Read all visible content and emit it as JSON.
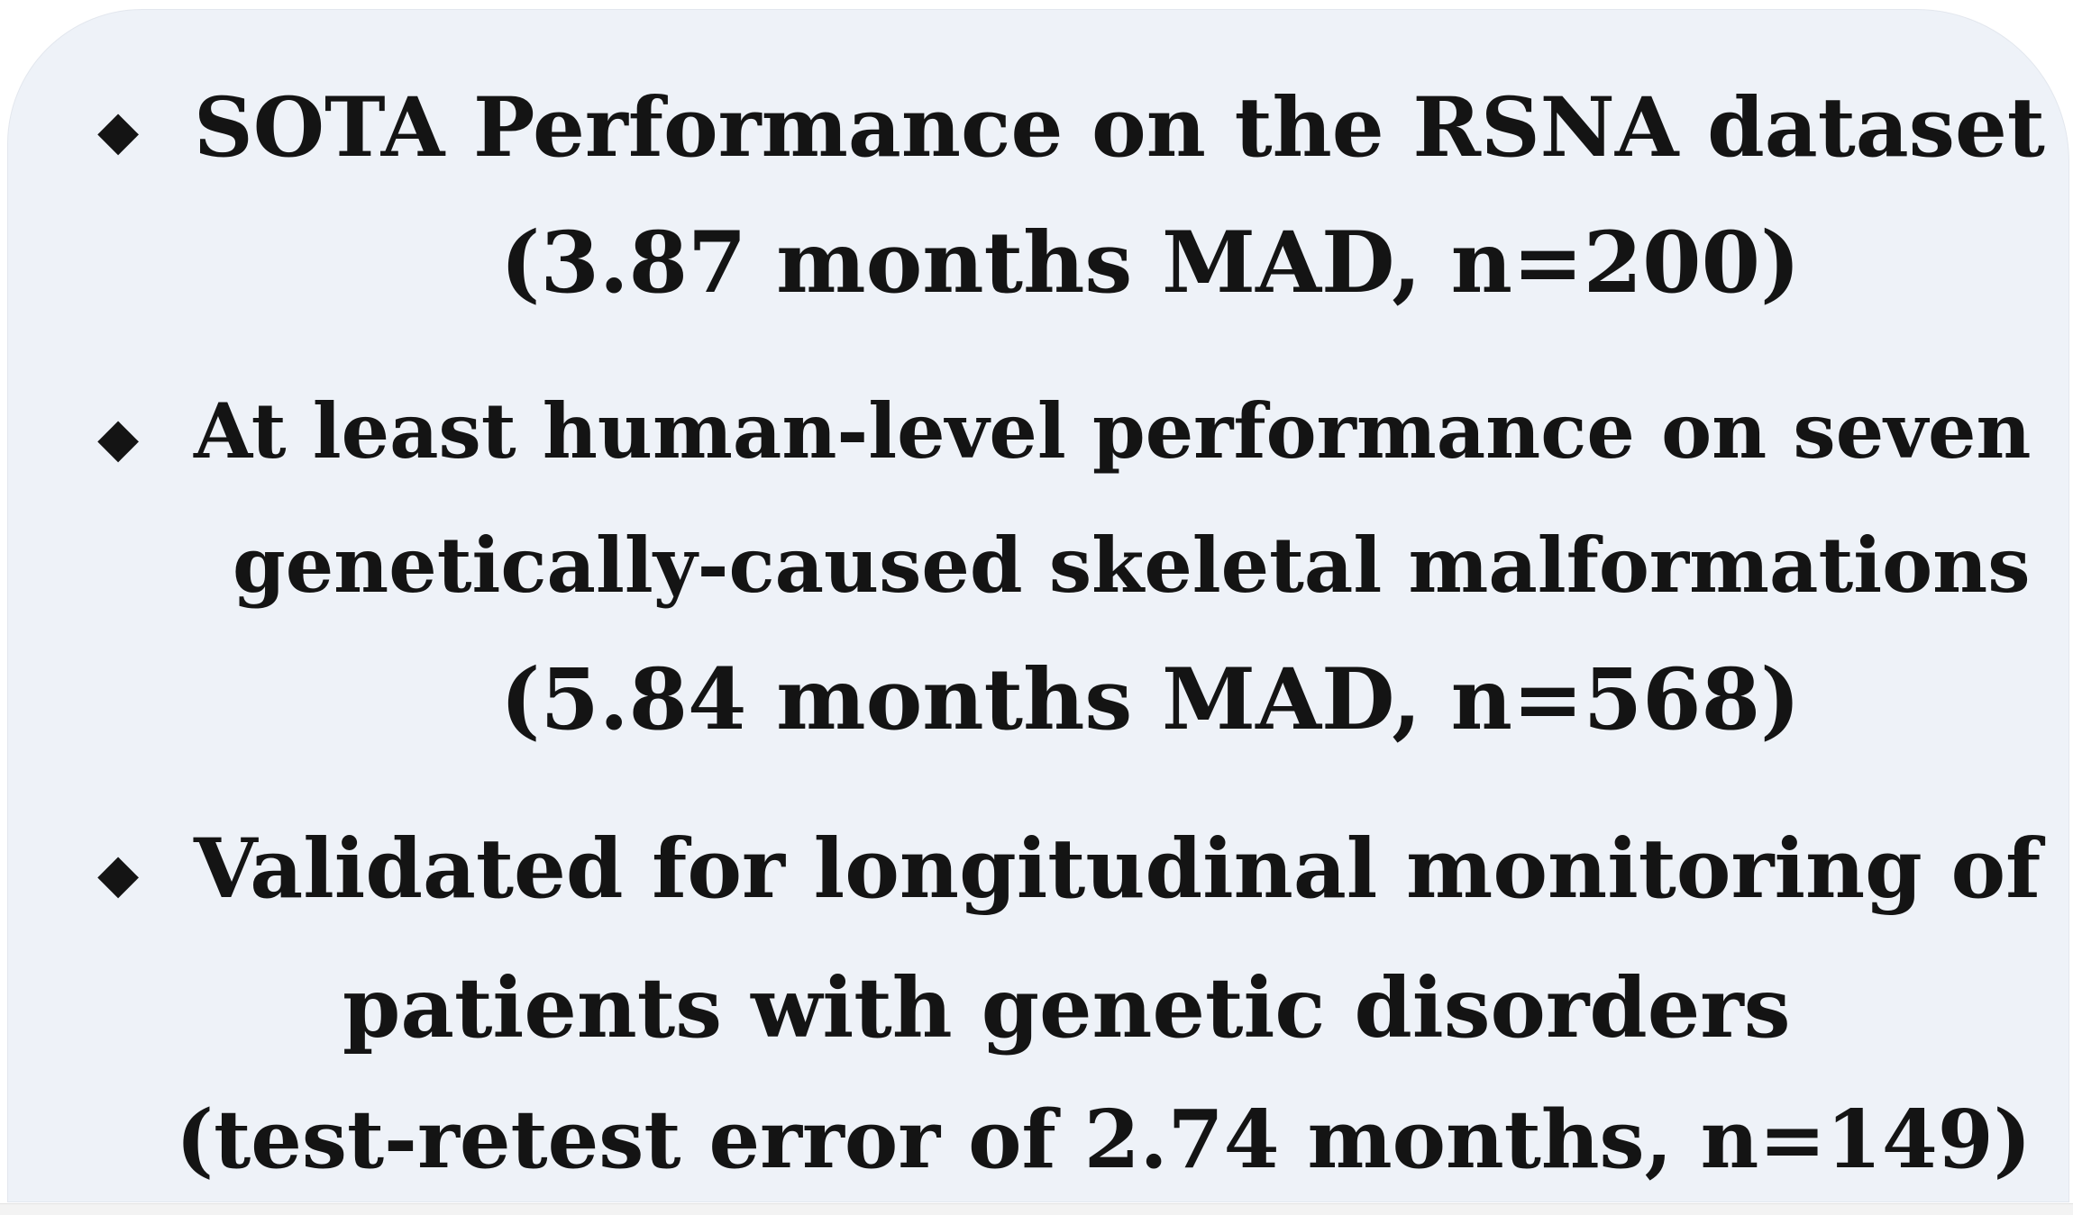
{
  "bullets": [
    {
      "marker": "◆",
      "lines": [
        "SOTA Performance on the RSNA dataset",
        "(3.87 months MAD, n=200)"
      ]
    },
    {
      "marker": "◆",
      "lines": [
        "At least human-level performance on seven",
        "genetically-caused skeletal malformations",
        "(5.84 months MAD, n=568)"
      ]
    },
    {
      "marker": "◆",
      "lines": [
        "Validated for longitudinal monitoring of",
        "patients with genetic disorders",
        "(test-retest error of 2.74 months, n=149)"
      ]
    }
  ]
}
